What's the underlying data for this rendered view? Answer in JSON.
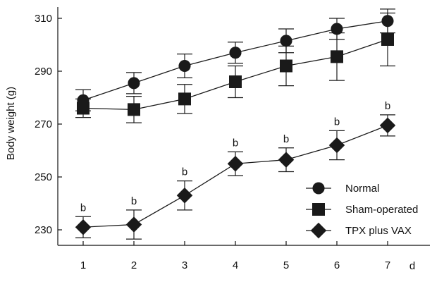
{
  "chart_data": {
    "type": "line",
    "title": "",
    "xlabel": "d",
    "ylabel": "Body weight (g)",
    "x": [
      1,
      2,
      3,
      4,
      5,
      6,
      7
    ],
    "x_tick_labels": [
      "1",
      "2",
      "3",
      "4",
      "5",
      "6",
      "7"
    ],
    "ylim": [
      225,
      312
    ],
    "y_ticks": [
      230,
      250,
      270,
      290,
      310
    ],
    "y_tick_labels": [
      "230",
      "250",
      "270",
      "290",
      "310"
    ],
    "grid": false,
    "legend_position": "bottom-right",
    "series": [
      {
        "name": "Normal",
        "marker": "circle",
        "color": "#1a1a1a",
        "values": [
          279,
          285.5,
          292,
          297,
          301.5,
          306,
          309
        ],
        "error": [
          4,
          4,
          4.5,
          4,
          4.5,
          4,
          4.5
        ]
      },
      {
        "name": "Sham-operated",
        "marker": "square",
        "color": "#1a1a1a",
        "values": [
          276,
          275.5,
          279.5,
          286,
          292,
          295.5,
          302
        ],
        "error": [
          3.5,
          5,
          5.5,
          6,
          7.5,
          9,
          10
        ]
      },
      {
        "name": "TPX plus VAX",
        "marker": "diamond",
        "color": "#1a1a1a",
        "values": [
          231,
          232,
          243,
          255,
          256.5,
          262,
          269.5
        ],
        "error": [
          4,
          5.5,
          5.5,
          4.5,
          4.5,
          5.5,
          4
        ],
        "annotations": [
          "b",
          "b",
          "b",
          "b",
          "b",
          "b",
          "b"
        ]
      }
    ]
  }
}
